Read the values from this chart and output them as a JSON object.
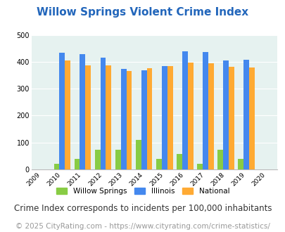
{
  "title": "Willow Springs Violent Crime Index",
  "years": [
    2009,
    2010,
    2011,
    2012,
    2013,
    2014,
    2015,
    2016,
    2017,
    2018,
    2019,
    2020
  ],
  "bar_years": [
    2010,
    2011,
    2012,
    2013,
    2014,
    2015,
    2016,
    2017,
    2018,
    2019
  ],
  "willow_springs": [
    20,
    40,
    73,
    73,
    110,
    40,
    57,
    20,
    73,
    40
  ],
  "illinois": [
    433,
    428,
    414,
    372,
    369,
    383,
    438,
    437,
    405,
    408
  ],
  "national": [
    405,
    387,
    387,
    366,
    375,
    383,
    397,
    394,
    380,
    379
  ],
  "willow_color": "#88cc44",
  "illinois_color": "#4488ee",
  "national_color": "#ffaa33",
  "bg_color": "#e6f2f0",
  "ylim": [
    0,
    500
  ],
  "yticks": [
    0,
    100,
    200,
    300,
    400,
    500
  ],
  "title_color": "#2266bb",
  "subtitle": "Crime Index corresponds to incidents per 100,000 inhabitants",
  "footer": "© 2025 CityRating.com - https://www.cityrating.com/crime-statistics/",
  "legend_labels": [
    "Willow Springs",
    "Illinois",
    "National"
  ],
  "bar_width": 0.27,
  "title_fontsize": 11,
  "subtitle_fontsize": 8.5,
  "footer_fontsize": 7.5
}
